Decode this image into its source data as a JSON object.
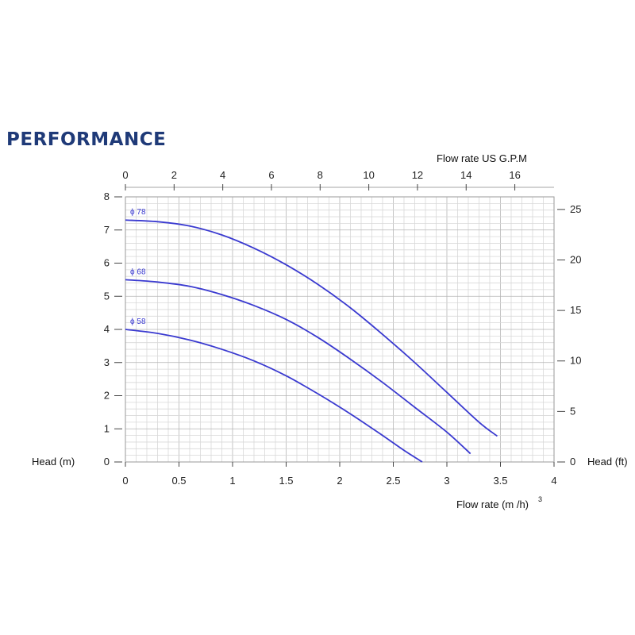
{
  "title": "PERFORMANCE",
  "chart_data": {
    "type": "line",
    "x_bottom": {
      "label": "Flow rate  (m /h)",
      "superscript": "3",
      "range": [
        0,
        4
      ],
      "ticks": [
        "0",
        "0.5",
        "1",
        "1.5",
        "2",
        "2.5",
        "3",
        "3.5",
        "4"
      ]
    },
    "x_top": {
      "label": "Flow rate US  G.P.M",
      "ticks": [
        "0",
        "2",
        "4",
        "6",
        "8",
        "10",
        "12",
        "14",
        "16"
      ]
    },
    "y_left": {
      "label": "Head (m)",
      "range": [
        0,
        8
      ],
      "ticks": [
        "0",
        "1",
        "2",
        "3",
        "4",
        "5",
        "6",
        "7",
        "8"
      ]
    },
    "y_right": {
      "label": "Head (ft)",
      "ticks": [
        "0",
        "5",
        "10",
        "15",
        "20",
        "25"
      ]
    },
    "grid": true,
    "line_color": "#3a3ad0",
    "series": [
      {
        "name": "ϕ 78",
        "x": [
          0,
          0.3,
          0.6,
          0.9,
          1.2,
          1.5,
          1.8,
          2.1,
          2.4,
          2.7,
          3.0,
          3.3,
          3.47
        ],
        "y": [
          7.3,
          7.25,
          7.12,
          6.85,
          6.45,
          5.95,
          5.35,
          4.65,
          3.85,
          3.0,
          2.1,
          1.2,
          0.78
        ]
      },
      {
        "name": "ϕ 68",
        "x": [
          0,
          0.3,
          0.6,
          0.9,
          1.2,
          1.5,
          1.8,
          2.1,
          2.4,
          2.7,
          3.0,
          3.22
        ],
        "y": [
          5.5,
          5.43,
          5.3,
          5.05,
          4.72,
          4.3,
          3.75,
          3.1,
          2.4,
          1.65,
          0.9,
          0.25
        ]
      },
      {
        "name": "ϕ 58",
        "x": [
          0,
          0.3,
          0.6,
          0.9,
          1.2,
          1.5,
          1.8,
          2.1,
          2.4,
          2.6,
          2.77
        ],
        "y": [
          4.0,
          3.88,
          3.68,
          3.4,
          3.05,
          2.6,
          2.05,
          1.45,
          0.8,
          0.35,
          0.0
        ]
      }
    ]
  }
}
